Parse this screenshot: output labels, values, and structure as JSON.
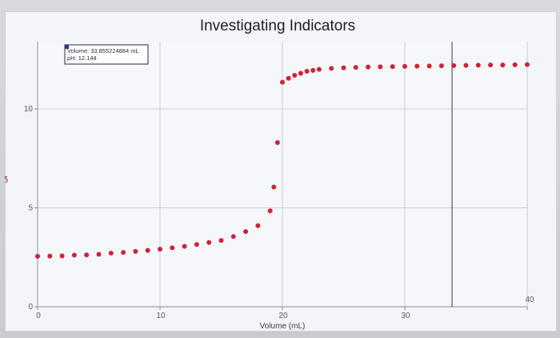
{
  "chart_data": {
    "type": "scatter",
    "title": "Investigating Indicators",
    "xlabel": "Volume (mL)",
    "ylabel": "",
    "xlim": [
      0,
      40
    ],
    "ylim": [
      0,
      13.4
    ],
    "x_ticks": [
      0,
      10,
      20,
      30,
      40
    ],
    "y_ticks": [
      0,
      5,
      10
    ],
    "grid": true,
    "marker_color": "#d0213a",
    "series": [
      {
        "points": [
          {
            "x": 0.0,
            "y": 2.55
          },
          {
            "x": 1.0,
            "y": 2.56
          },
          {
            "x": 2.0,
            "y": 2.57
          },
          {
            "x": 3.0,
            "y": 2.61
          },
          {
            "x": 4.0,
            "y": 2.62
          },
          {
            "x": 5.0,
            "y": 2.65
          },
          {
            "x": 6.0,
            "y": 2.71
          },
          {
            "x": 7.0,
            "y": 2.75
          },
          {
            "x": 8.0,
            "y": 2.8
          },
          {
            "x": 9.0,
            "y": 2.85
          },
          {
            "x": 10.0,
            "y": 2.91
          },
          {
            "x": 11.0,
            "y": 2.98
          },
          {
            "x": 12.0,
            "y": 3.05
          },
          {
            "x": 13.0,
            "y": 3.15
          },
          {
            "x": 14.0,
            "y": 3.25
          },
          {
            "x": 15.0,
            "y": 3.35
          },
          {
            "x": 16.0,
            "y": 3.55
          },
          {
            "x": 17.0,
            "y": 3.8
          },
          {
            "x": 18.0,
            "y": 4.1
          },
          {
            "x": 19.0,
            "y": 4.85
          },
          {
            "x": 19.3,
            "y": 6.05
          },
          {
            "x": 19.6,
            "y": 8.3
          },
          {
            "x": 20.0,
            "y": 11.35
          },
          {
            "x": 20.5,
            "y": 11.55
          },
          {
            "x": 21.0,
            "y": 11.7
          },
          {
            "x": 21.5,
            "y": 11.8
          },
          {
            "x": 22.0,
            "y": 11.9
          },
          {
            "x": 22.5,
            "y": 11.95
          },
          {
            "x": 23.0,
            "y": 12.0
          },
          {
            "x": 24.0,
            "y": 12.05
          },
          {
            "x": 25.0,
            "y": 12.08
          },
          {
            "x": 26.0,
            "y": 12.1
          },
          {
            "x": 27.0,
            "y": 12.12
          },
          {
            "x": 28.0,
            "y": 12.13
          },
          {
            "x": 29.0,
            "y": 12.14
          },
          {
            "x": 30.0,
            "y": 12.15
          },
          {
            "x": 31.0,
            "y": 12.16
          },
          {
            "x": 32.0,
            "y": 12.17
          },
          {
            "x": 33.0,
            "y": 12.18
          },
          {
            "x": 34.0,
            "y": 12.19
          },
          {
            "x": 35.0,
            "y": 12.2
          },
          {
            "x": 36.0,
            "y": 12.21
          },
          {
            "x": 37.0,
            "y": 12.22
          },
          {
            "x": 38.0,
            "y": 12.22
          },
          {
            "x": 39.0,
            "y": 12.23
          },
          {
            "x": 40.0,
            "y": 12.24
          }
        ]
      }
    ],
    "readout": {
      "volume_text": "Volume: 33.855224884 mL",
      "ph_text": "pH: 12.144"
    },
    "cursor_x": 33.86,
    "cursor_color": "#555a63"
  },
  "side_glyph": "δ",
  "colors": {
    "grid": "#c9ccd4",
    "axis": "#8a8f98",
    "plot_bg": "#f5f7fa"
  }
}
